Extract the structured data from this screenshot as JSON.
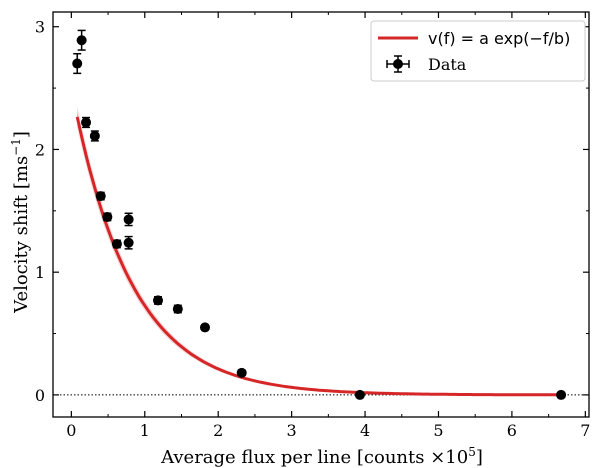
{
  "chart_data": {
    "type": "scatter",
    "xlabel_main": "Average flux per line [counts ×10",
    "xlabel_sup": "5",
    "xlabel_end": "]",
    "ylabel_main": "Velocity shift [ms",
    "ylabel_sup": "−1",
    "ylabel_end": "]",
    "xlim": [
      -0.25,
      7.05
    ],
    "ylim": [
      -0.18,
      3.12
    ],
    "xticks": [
      0,
      1,
      2,
      3,
      4,
      5,
      6,
      7
    ],
    "yticks": [
      0,
      1,
      2,
      3
    ],
    "tick_labels_x": [
      "0",
      "1",
      "2",
      "3",
      "4",
      "5",
      "6",
      "7"
    ],
    "tick_labels_y": [
      "0",
      "1",
      "2",
      "3"
    ],
    "reference_line": {
      "y": 0,
      "style": "dotted"
    },
    "legend": {
      "placement": "top-right",
      "fit_label": "v(f) = a exp(−f/b)",
      "data_label": "Data"
    },
    "fit": {
      "a": 2.5,
      "b": 0.81,
      "color": "#d62728",
      "band_inner_color": "#e8a0a0",
      "band_outer_color": "#f8d6d6"
    },
    "series": [
      {
        "name": "Data",
        "color": "#000000",
        "points": [
          {
            "x": 0.08,
            "y": 2.7,
            "yerr": 0.08
          },
          {
            "x": 0.14,
            "y": 2.89,
            "yerr": 0.08
          },
          {
            "x": 0.2,
            "y": 2.22,
            "yerr": 0.04
          },
          {
            "x": 0.32,
            "y": 2.11,
            "yerr": 0.04
          },
          {
            "x": 0.4,
            "y": 1.62,
            "yerr": 0.03
          },
          {
            "x": 0.49,
            "y": 1.45,
            "yerr": 0.03
          },
          {
            "x": 0.62,
            "y": 1.23,
            "yerr": 0.03
          },
          {
            "x": 0.78,
            "y": 1.43,
            "yerr": 0.05
          },
          {
            "x": 0.78,
            "y": 1.24,
            "yerr": 0.05
          },
          {
            "x": 1.18,
            "y": 0.77,
            "yerr": 0.03
          },
          {
            "x": 1.45,
            "y": 0.7,
            "yerr": 0.03
          },
          {
            "x": 1.82,
            "y": 0.55,
            "yerr": 0.02
          },
          {
            "x": 2.32,
            "y": 0.18,
            "yerr": 0.02
          },
          {
            "x": 3.93,
            "y": 0.0,
            "yerr": 0.02
          },
          {
            "x": 6.67,
            "y": 0.0,
            "yerr": 0.02
          }
        ]
      }
    ]
  }
}
